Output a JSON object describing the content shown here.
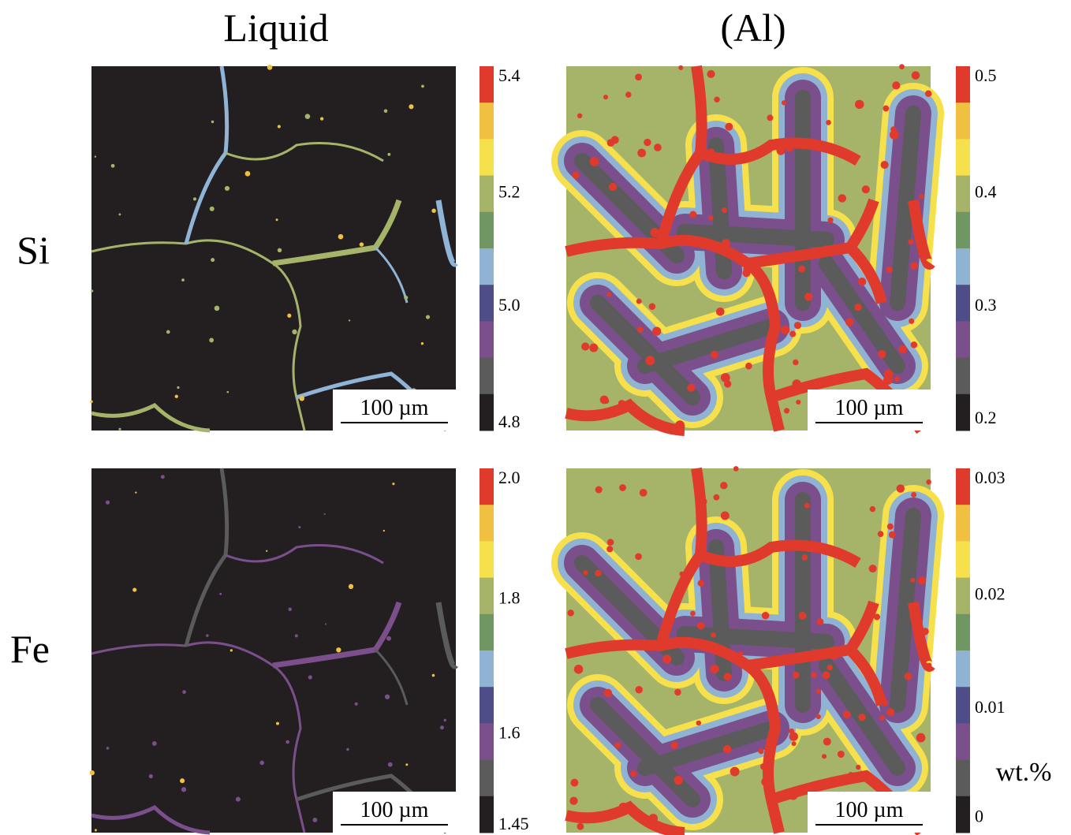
{
  "columns": [
    "Liquid",
    "(Al)"
  ],
  "rows": [
    "Si",
    "Fe"
  ],
  "panels": [
    {
      "scale_bar": "100 µm",
      "colorbar_ticks": [
        "5.4",
        "5.2",
        "5.0",
        "4.8"
      ]
    },
    {
      "scale_bar": "100 µm",
      "colorbar_ticks": [
        "0.5",
        "0.4",
        "0.3",
        "0.2"
      ]
    },
    {
      "scale_bar": "100 µm",
      "colorbar_ticks": [
        "2.0",
        "1.8",
        "1.6",
        "1.45"
      ]
    },
    {
      "scale_bar": "100 µm",
      "colorbar_ticks": [
        "0.03",
        "0.02",
        "0.01",
        "0"
      ]
    }
  ],
  "unit": "wt.%"
}
